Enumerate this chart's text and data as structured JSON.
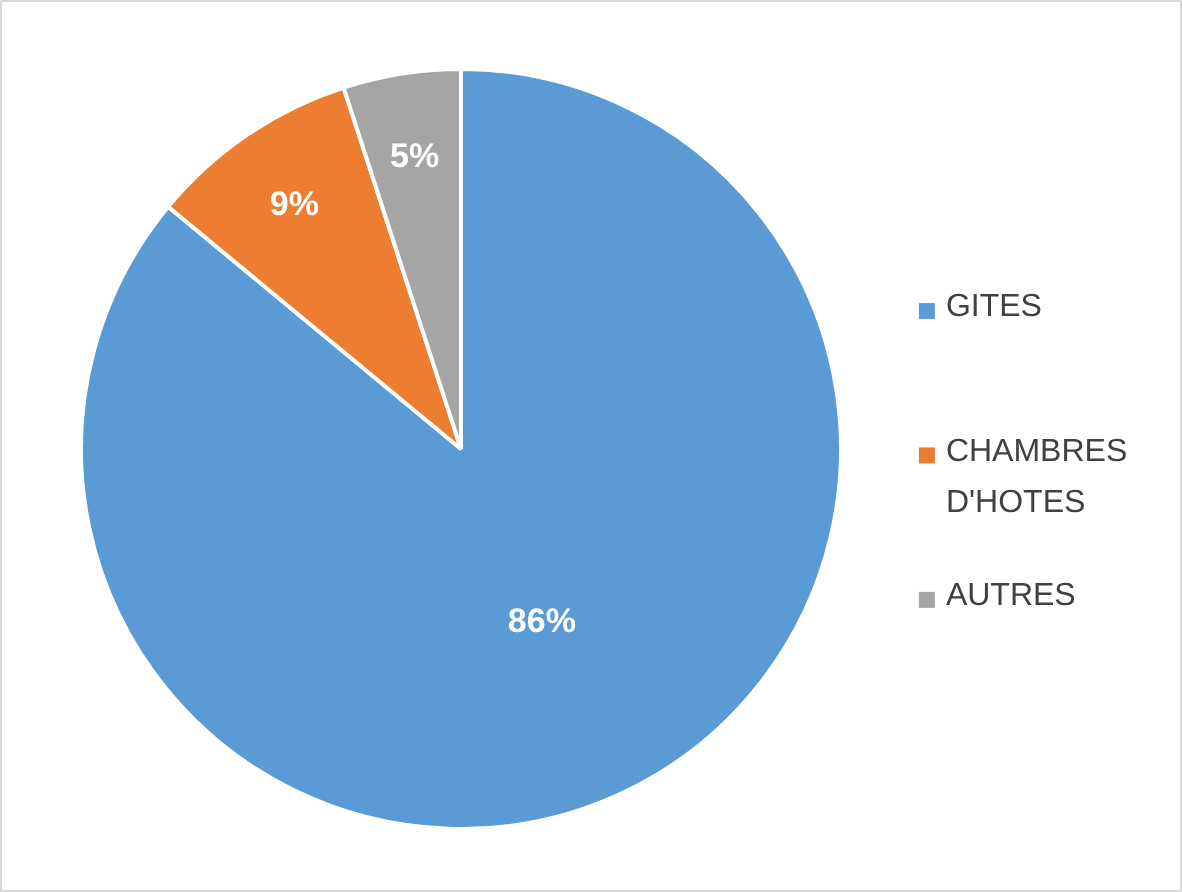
{
  "chart_data": {
    "type": "pie",
    "categories": [
      "GITES",
      "CHAMBRES D'HOTES",
      "AUTRES"
    ],
    "values": [
      86,
      9,
      5
    ],
    "colors": [
      "#5b9bd5",
      "#ed7d31",
      "#a5a5a5"
    ],
    "value_labels": [
      "86%",
      "9%",
      "5%"
    ],
    "legend": "right"
  }
}
